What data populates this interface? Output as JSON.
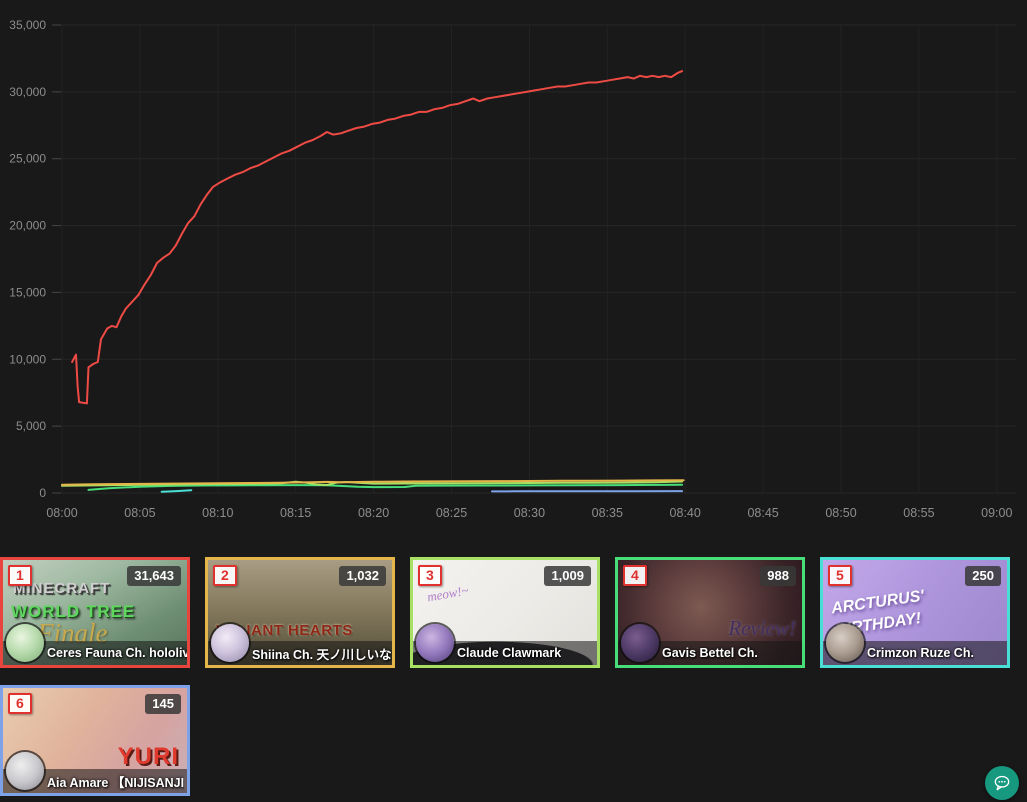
{
  "chart_data": {
    "type": "line",
    "title": "",
    "xlabel": "",
    "ylabel": "",
    "ylim": [
      0,
      35000
    ],
    "grid": true,
    "legend_position": "none",
    "x_ticks": [
      "08:00",
      "08:05",
      "08:10",
      "08:15",
      "08:20",
      "08:25",
      "08:30",
      "08:35",
      "08:40",
      "08:45",
      "08:50",
      "08:55",
      "09:00"
    ],
    "y_ticks": [
      "0",
      "5,000",
      "10,000",
      "15,000",
      "20,000",
      "25,000",
      "30,000",
      "35,000"
    ],
    "x_unit": "minutes_after_08:00",
    "series": [
      {
        "name": "Ceres Fauna Ch. hololive-",
        "color": "#ef4b45",
        "points": [
          [
            0.65,
            9800
          ],
          [
            0.9,
            10350
          ],
          [
            1.0,
            8000
          ],
          [
            1.1,
            6800
          ],
          [
            1.6,
            6700
          ],
          [
            1.7,
            9400
          ],
          [
            2.0,
            9650
          ],
          [
            2.3,
            9800
          ],
          [
            2.5,
            11500
          ],
          [
            2.9,
            12300
          ],
          [
            3.2,
            12500
          ],
          [
            3.5,
            12400
          ],
          [
            3.8,
            13200
          ],
          [
            4.1,
            13800
          ],
          [
            4.5,
            14300
          ],
          [
            4.9,
            14800
          ],
          [
            5.3,
            15600
          ],
          [
            5.7,
            16300
          ],
          [
            6.1,
            17200
          ],
          [
            6.5,
            17600
          ],
          [
            6.9,
            17900
          ],
          [
            7.3,
            18500
          ],
          [
            7.7,
            19400
          ],
          [
            8.1,
            20200
          ],
          [
            8.5,
            20700
          ],
          [
            8.9,
            21600
          ],
          [
            9.3,
            22300
          ],
          [
            9.7,
            22900
          ],
          [
            10.1,
            23200
          ],
          [
            10.6,
            23500
          ],
          [
            11.1,
            23800
          ],
          [
            11.6,
            24000
          ],
          [
            12.1,
            24300
          ],
          [
            12.6,
            24500
          ],
          [
            13.1,
            24800
          ],
          [
            13.6,
            25100
          ],
          [
            14.1,
            25400
          ],
          [
            14.6,
            25600
          ],
          [
            15.1,
            25900
          ],
          [
            15.6,
            26200
          ],
          [
            16.1,
            26400
          ],
          [
            16.6,
            26700
          ],
          [
            17.0,
            27000
          ],
          [
            17.4,
            26800
          ],
          [
            17.9,
            26900
          ],
          [
            18.4,
            27100
          ],
          [
            18.9,
            27300
          ],
          [
            19.4,
            27400
          ],
          [
            19.9,
            27600
          ],
          [
            20.4,
            27700
          ],
          [
            20.9,
            27900
          ],
          [
            21.4,
            28000
          ],
          [
            21.9,
            28200
          ],
          [
            22.4,
            28300
          ],
          [
            22.9,
            28500
          ],
          [
            23.4,
            28500
          ],
          [
            23.9,
            28700
          ],
          [
            24.4,
            28800
          ],
          [
            24.9,
            29000
          ],
          [
            25.4,
            29100
          ],
          [
            25.9,
            29300
          ],
          [
            26.4,
            29500
          ],
          [
            26.8,
            29300
          ],
          [
            27.3,
            29500
          ],
          [
            27.8,
            29600
          ],
          [
            28.3,
            29700
          ],
          [
            28.8,
            29800
          ],
          [
            29.3,
            29900
          ],
          [
            29.8,
            30000
          ],
          [
            30.3,
            30100
          ],
          [
            30.8,
            30200
          ],
          [
            31.3,
            30300
          ],
          [
            31.8,
            30400
          ],
          [
            32.3,
            30400
          ],
          [
            32.8,
            30500
          ],
          [
            33.3,
            30600
          ],
          [
            33.8,
            30700
          ],
          [
            34.3,
            30700
          ],
          [
            34.8,
            30800
          ],
          [
            35.3,
            30900
          ],
          [
            35.8,
            31000
          ],
          [
            36.3,
            31100
          ],
          [
            36.7,
            31000
          ],
          [
            37.1,
            31200
          ],
          [
            37.5,
            31100
          ],
          [
            37.9,
            31200
          ],
          [
            38.3,
            31100
          ],
          [
            38.7,
            31200
          ],
          [
            39.1,
            31100
          ],
          [
            39.5,
            31400
          ],
          [
            39.8,
            31550
          ]
        ]
      },
      {
        "name": "Shiina Ch. 天ノ川しいな",
        "color": "#e3b54a",
        "points": [
          [
            0,
            620
          ],
          [
            2,
            650
          ],
          [
            4,
            670
          ],
          [
            6,
            690
          ],
          [
            8,
            710
          ],
          [
            10,
            730
          ],
          [
            12,
            750
          ],
          [
            14,
            770
          ],
          [
            16,
            800
          ],
          [
            17,
            830
          ],
          [
            18,
            810
          ],
          [
            20,
            840
          ],
          [
            22,
            860
          ],
          [
            24,
            870
          ],
          [
            26,
            880
          ],
          [
            28,
            890
          ],
          [
            30,
            900
          ],
          [
            32,
            910
          ],
          [
            34,
            920
          ],
          [
            36,
            930
          ],
          [
            38,
            940
          ],
          [
            39.9,
            950
          ]
        ]
      },
      {
        "name": "Claude Clawmark",
        "color": "#a8e063",
        "points": [
          [
            0,
            540
          ],
          [
            2,
            570
          ],
          [
            4,
            600
          ],
          [
            6,
            630
          ],
          [
            8,
            650
          ],
          [
            10,
            670
          ],
          [
            12,
            690
          ],
          [
            14,
            720
          ],
          [
            15,
            840
          ],
          [
            15.7,
            760
          ],
          [
            16.3,
            640
          ],
          [
            17,
            600
          ],
          [
            17.6,
            780
          ],
          [
            18.3,
            820
          ],
          [
            19,
            760
          ],
          [
            20,
            700
          ],
          [
            22,
            710
          ],
          [
            24,
            720
          ],
          [
            26,
            730
          ],
          [
            28,
            740
          ],
          [
            30,
            750
          ],
          [
            32,
            760
          ],
          [
            34,
            770
          ],
          [
            36,
            780
          ],
          [
            38,
            800
          ],
          [
            39.8,
            860
          ]
        ]
      },
      {
        "name": "Gavis Bettel Ch.",
        "color": "#47dd78",
        "points": [
          [
            1.7,
            230
          ],
          [
            3,
            350
          ],
          [
            5,
            470
          ],
          [
            7,
            530
          ],
          [
            9,
            560
          ],
          [
            11,
            570
          ],
          [
            13,
            580
          ],
          [
            15,
            590
          ],
          [
            17,
            580
          ],
          [
            19,
            460
          ],
          [
            20,
            440
          ],
          [
            22,
            450
          ],
          [
            22.7,
            540
          ],
          [
            24,
            550
          ],
          [
            27,
            560
          ],
          [
            30,
            570
          ],
          [
            33,
            580
          ],
          [
            36,
            590
          ],
          [
            39.8,
            610
          ]
        ]
      },
      {
        "name": "Crimzon Ruze Ch.",
        "color": "#4adfd4",
        "points": [
          [
            6.4,
            90
          ],
          [
            7.0,
            120
          ],
          [
            7.5,
            150
          ],
          [
            8.0,
            190
          ],
          [
            8.3,
            210
          ]
        ]
      },
      {
        "name": "Aia Amare 【NIJISANJI",
        "color": "#7da2e8",
        "points": [
          [
            27.6,
            120
          ],
          [
            29,
            130
          ],
          [
            31,
            125
          ],
          [
            33,
            130
          ],
          [
            35,
            128
          ],
          [
            37,
            135
          ],
          [
            39.8,
            140
          ]
        ]
      }
    ]
  },
  "cards": [
    {
      "rank": "1",
      "count": "31,643",
      "channel": "Ceres Fauna Ch. hololive-",
      "accent": "#e8453f",
      "thumb_lines": [
        "MINECRAFT",
        "WORLD TREE",
        "Finale"
      ]
    },
    {
      "rank": "2",
      "count": "1,032",
      "channel": "Shiina Ch. 天ノ川しいな",
      "accent": "#e3b54a",
      "thumb_lines": [
        "VALIANT HEARTS"
      ]
    },
    {
      "rank": "3",
      "count": "1,009",
      "channel": "Claude Clawmark",
      "accent": "#a8e063",
      "thumb_lines": [
        "meow!~"
      ]
    },
    {
      "rank": "4",
      "count": "988",
      "channel": "Gavis Bettel Ch.",
      "accent": "#47dd78",
      "thumb_lines": [
        "Review!"
      ]
    },
    {
      "rank": "5",
      "count": "250",
      "channel": "Crimzon Ruze Ch.",
      "accent": "#4adfd4",
      "thumb_lines": [
        "ARCTURUS'",
        "BIRTHDAY!"
      ]
    },
    {
      "rank": "6",
      "count": "145",
      "channel": "Aia Amare 【NIJISANJI",
      "accent": "#7da2e8",
      "thumb_lines": [
        "YURI"
      ]
    }
  ],
  "colors": {
    "background": "#191919",
    "grid_h": "#262626",
    "grid_v": "#222222",
    "axis_text": "#8d8d8d",
    "chat_button": "#16997f"
  }
}
